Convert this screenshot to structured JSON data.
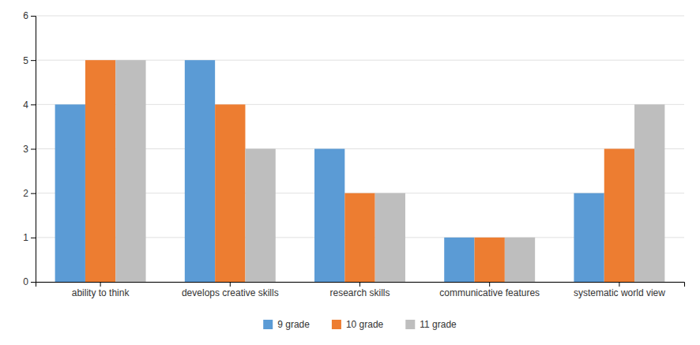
{
  "chart_data": {
    "type": "bar",
    "categories": [
      "ability to think",
      "develops creative skills",
      "research skills",
      "communicative features",
      "systematic world view"
    ],
    "series": [
      {
        "name": "9 grade",
        "color": "#5B9BD5",
        "values": [
          4,
          5,
          3,
          1,
          2
        ]
      },
      {
        "name": "10 grade",
        "color": "#ED7D31",
        "values": [
          5,
          4,
          2,
          1,
          3
        ]
      },
      {
        "name": "11 grade",
        "color": "#BEBEBE",
        "values": [
          5,
          3,
          2,
          1,
          4
        ]
      }
    ],
    "ylim": [
      0,
      6
    ],
    "yticks": [
      0,
      1,
      2,
      3,
      4,
      5,
      6
    ],
    "grid": true,
    "legend": "bottom"
  }
}
